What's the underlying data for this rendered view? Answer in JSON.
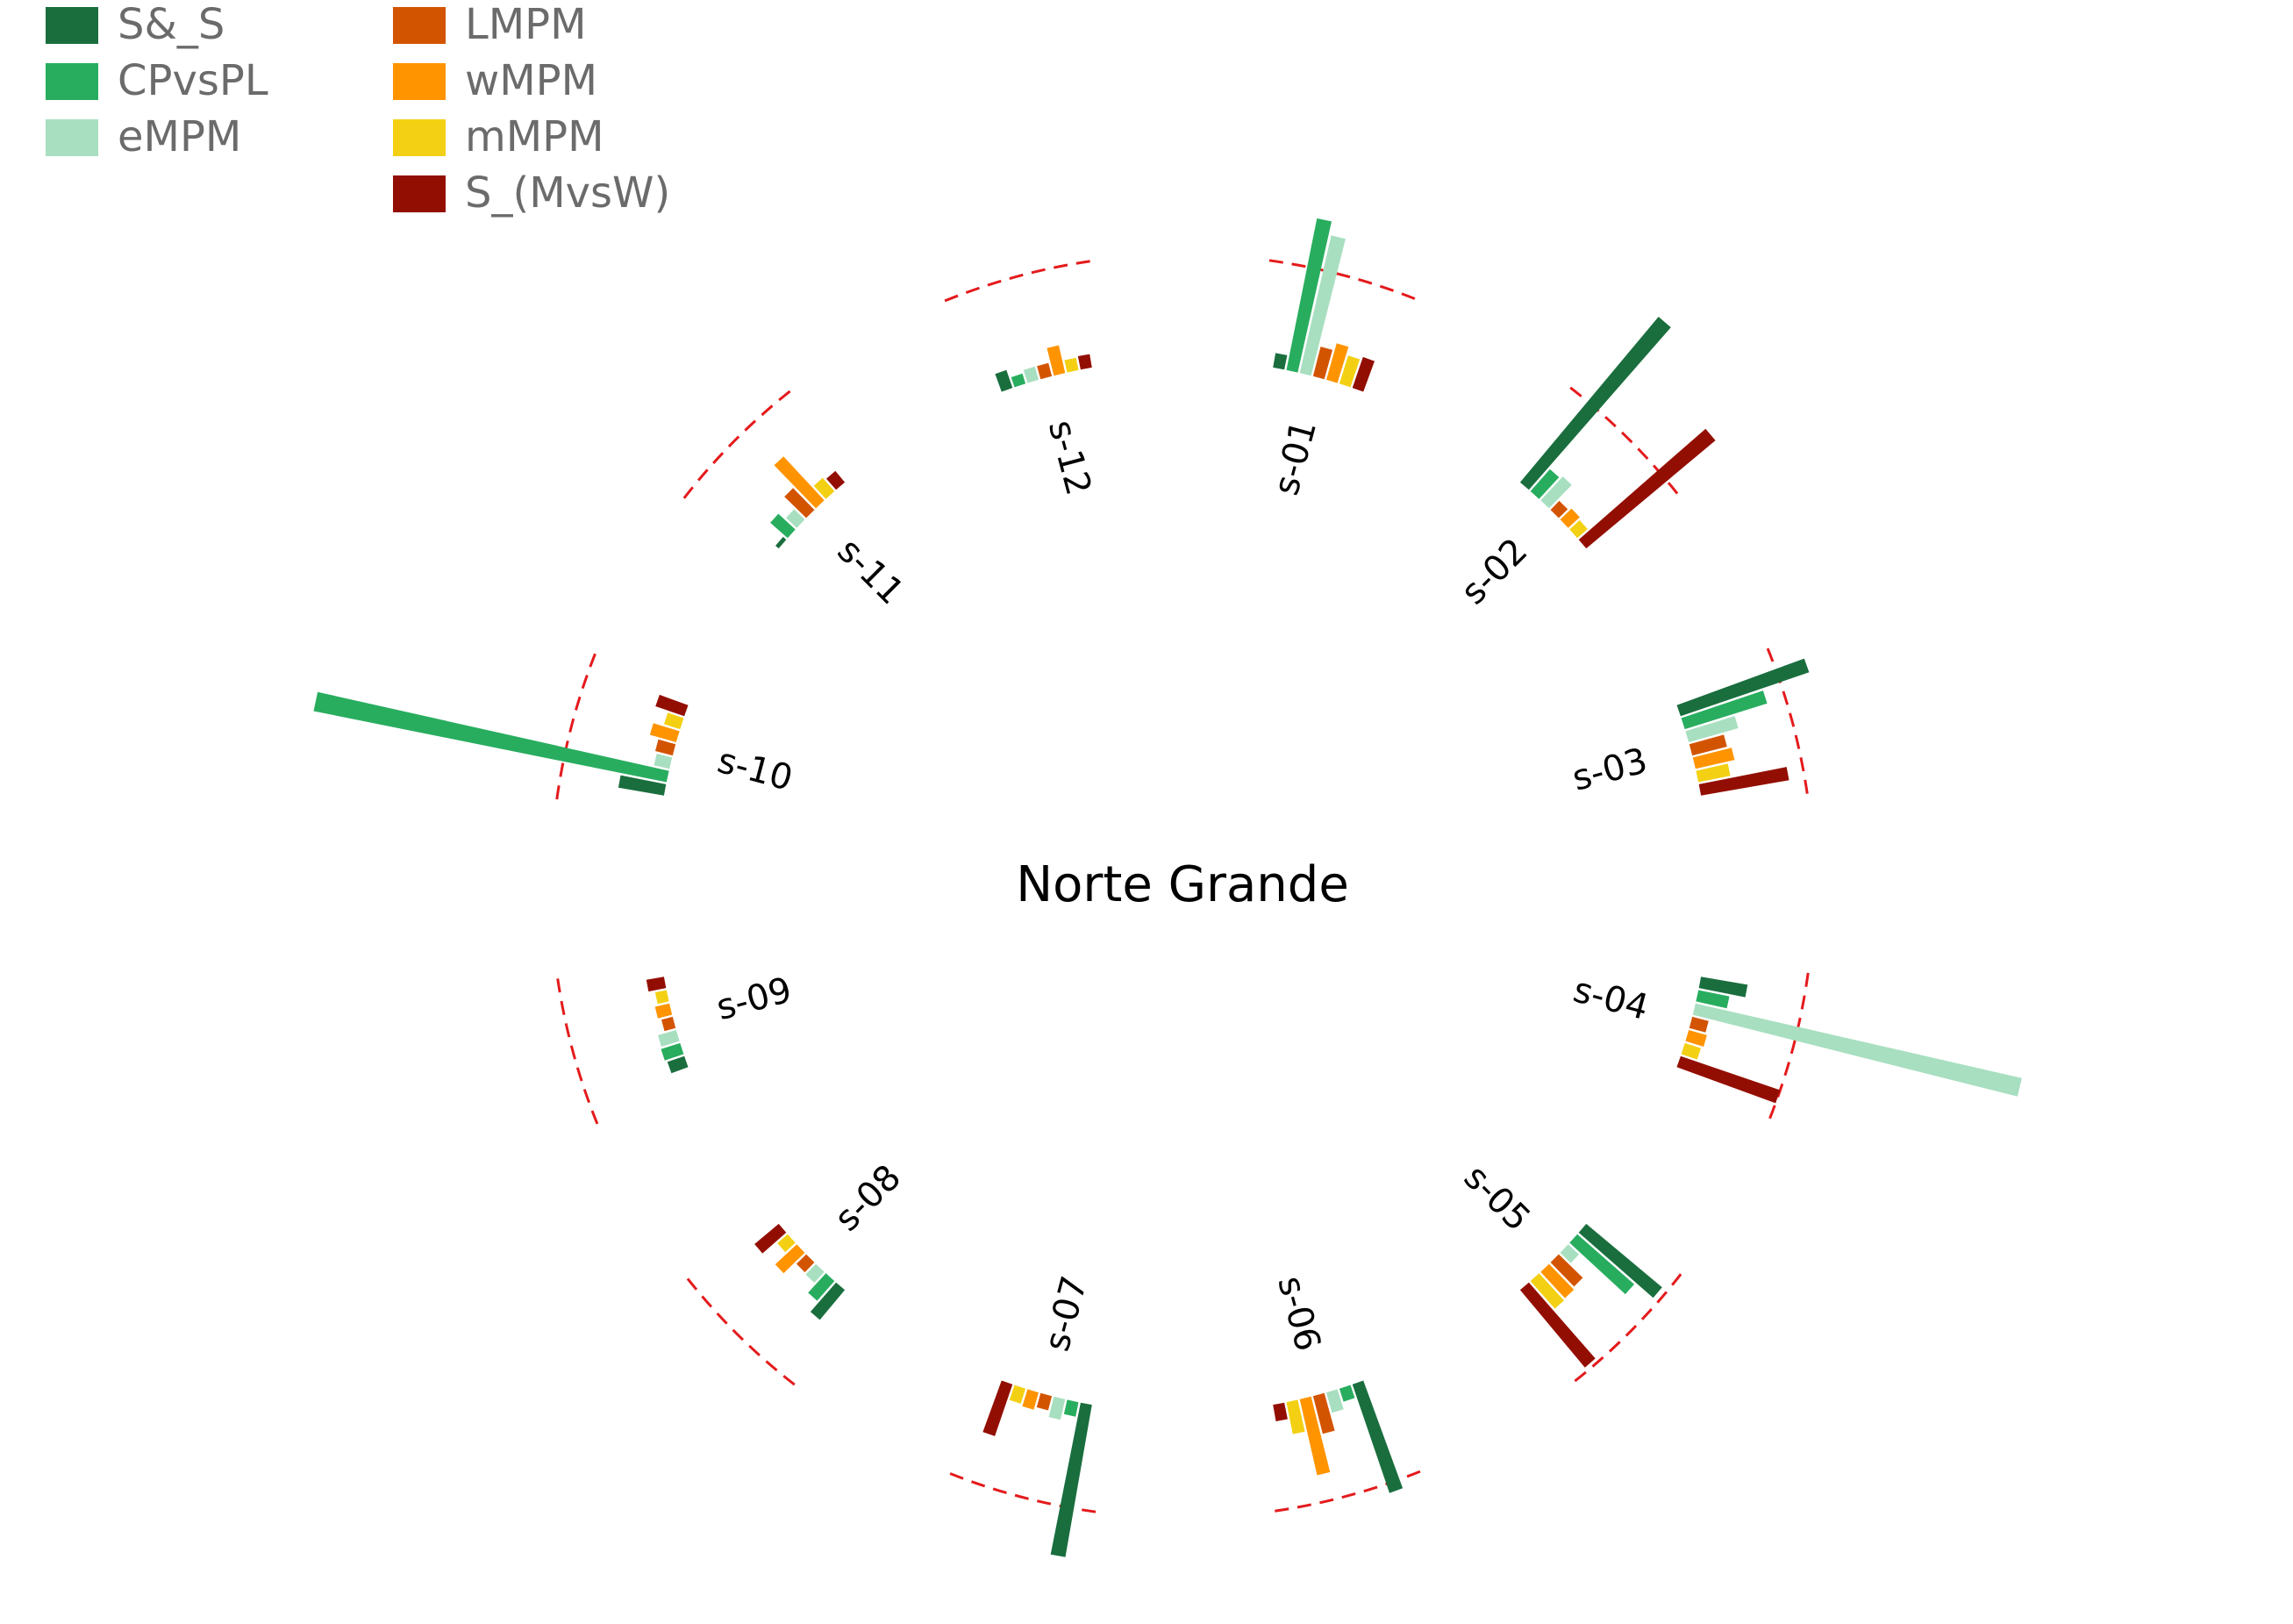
{
  "chart_data": {
    "type": "bar",
    "layout": "circular",
    "title": "Norte Grande",
    "reference_circle": {
      "value": 1.0,
      "style": "dashed",
      "color": "#E41A1C"
    },
    "legend": {
      "placement": "top-left",
      "entries": [
        {
          "name": "S&_S",
          "color": "#1A6E3E"
        },
        {
          "name": "CPvsPL",
          "color": "#28AD5F"
        },
        {
          "name": "eMPM",
          "color": "#A8DFC0"
        },
        {
          "name": "LMPM",
          "color": "#D35400"
        },
        {
          "name": "wMPM",
          "color": "#FF9400"
        },
        {
          "name": "mMPM",
          "color": "#F3D013"
        },
        {
          "name": "S_(MvsW)",
          "color": "#930E02"
        }
      ]
    },
    "categories": [
      "s-01",
      "s-02",
      "s-03",
      "s-04",
      "s-05",
      "s-06",
      "s-07",
      "s-08",
      "s-09",
      "s-10",
      "s-11",
      "s-12"
    ],
    "series": [
      {
        "name": "S&_S",
        "values": [
          0.14,
          2.05,
          1.29,
          0.45,
          0.94,
          1.09,
          1.47,
          0.37,
          0.17,
          0.44,
          0.04,
          0.18
        ]
      },
      {
        "name": "CPvsPL",
        "values": [
          1.47,
          0.28,
          0.82,
          0.3,
          0.72,
          0.13,
          0.14,
          0.25,
          0.19,
          3.42,
          0.22,
          0.1
        ]
      },
      {
        "name": "eMPM",
        "values": [
          1.34,
          0.31,
          0.49,
          3.18,
          0.14,
          0.2,
          0.2,
          0.14,
          0.18,
          0.15,
          0.14,
          0.13
        ]
      },
      {
        "name": "LMPM",
        "values": [
          0.29,
          0.12,
          0.34,
          0.16,
          0.32,
          0.37,
          0.14,
          0.13,
          0.11,
          0.17,
          0.29,
          0.13
        ]
      },
      {
        "name": "wMPM",
        "values": [
          0.36,
          0.15,
          0.38,
          0.18,
          0.34,
          0.74,
          0.17,
          0.28,
          0.14,
          0.26,
          0.57,
          0.27
        ]
      },
      {
        "name": "mMPM",
        "values": [
          0.28,
          0.13,
          0.31,
          0.16,
          0.35,
          0.31,
          0.15,
          0.13,
          0.11,
          0.16,
          0.17,
          0.12
        ]
      },
      {
        "name": "S_(MvsW)",
        "values": [
          0.31,
          1.6,
          0.85,
          1.0,
          0.96,
          0.16,
          0.52,
          0.3,
          0.17,
          0.29,
          0.14,
          0.13
        ]
      }
    ]
  }
}
